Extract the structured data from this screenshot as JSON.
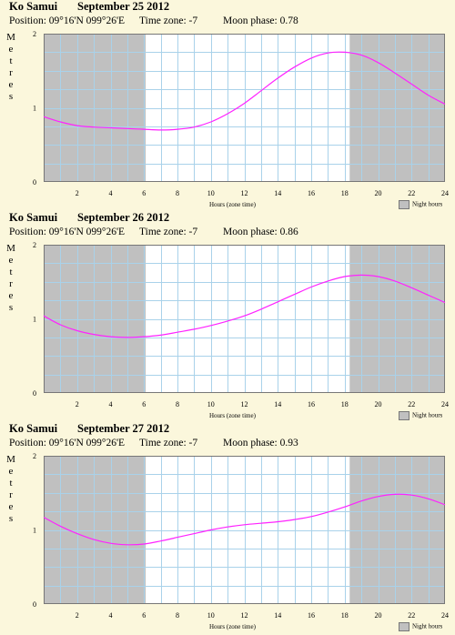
{
  "colors": {
    "background": "#fbf7dc",
    "night": "#c0c0c0",
    "day": "#ffffff",
    "grid": "#a9d2ea",
    "curve": "#ff22ff"
  },
  "ylabel_letters": [
    "M",
    "e",
    "t",
    "r",
    "e",
    "s"
  ],
  "xlabel": "Hours (zone time)",
  "legend_label": "Night hours",
  "chart_data": [
    {
      "type": "line",
      "place": "Ko Samui",
      "date": "September 25 2012",
      "position": "Position: 09°16'N 099°26'E",
      "timezone": "Time zone: -7",
      "moon": "Moon phase: 0.78",
      "xlim": [
        0,
        24
      ],
      "ylim": [
        0,
        2
      ],
      "xticks": [
        "2",
        "4",
        "6",
        "8",
        "10",
        "12",
        "14",
        "16",
        "18",
        "20",
        "22",
        "24"
      ],
      "yticks": [
        "0",
        "1",
        "2"
      ],
      "night": [
        [
          0,
          6.1
        ],
        [
          18.3,
          24
        ]
      ],
      "grid": true,
      "legend": "bottom-right",
      "x": [
        0,
        1,
        2,
        3,
        4,
        5,
        6,
        7,
        8,
        9,
        10,
        11,
        12,
        13,
        14,
        15,
        16,
        17,
        18,
        19,
        20,
        21,
        22,
        23,
        24
      ],
      "y": [
        0.88,
        0.81,
        0.76,
        0.74,
        0.73,
        0.72,
        0.71,
        0.7,
        0.71,
        0.74,
        0.81,
        0.92,
        1.06,
        1.23,
        1.4,
        1.55,
        1.67,
        1.74,
        1.75,
        1.71,
        1.61,
        1.47,
        1.32,
        1.17,
        1.05
      ]
    },
    {
      "type": "line",
      "place": "Ko Samui",
      "date": "September 26 2012",
      "position": "Position: 09°16'N 099°26'E",
      "timezone": "Time zone: -7",
      "moon": "Moon phase: 0.86",
      "xlim": [
        0,
        24
      ],
      "ylim": [
        0,
        2
      ],
      "xticks": [
        "2",
        "4",
        "6",
        "8",
        "10",
        "12",
        "14",
        "16",
        "18",
        "20",
        "22",
        "24"
      ],
      "yticks": [
        "0",
        "1",
        "2"
      ],
      "night": [
        [
          0,
          6.1
        ],
        [
          18.3,
          24
        ]
      ],
      "grid": true,
      "legend": "bottom-right",
      "x": [
        0,
        1,
        2,
        3,
        4,
        5,
        6,
        7,
        8,
        9,
        10,
        11,
        12,
        13,
        14,
        15,
        16,
        17,
        18,
        19,
        20,
        21,
        22,
        23,
        24
      ],
      "y": [
        1.04,
        0.92,
        0.84,
        0.79,
        0.76,
        0.75,
        0.76,
        0.78,
        0.82,
        0.86,
        0.91,
        0.97,
        1.04,
        1.13,
        1.23,
        1.33,
        1.43,
        1.51,
        1.57,
        1.59,
        1.57,
        1.51,
        1.42,
        1.32,
        1.22
      ]
    },
    {
      "type": "line",
      "place": "Ko Samui",
      "date": "September 27 2012",
      "position": "Position: 09°16'N 099°26'E",
      "timezone": "Time zone: -7",
      "moon": "Moon phase: 0.93",
      "xlim": [
        0,
        24
      ],
      "ylim": [
        0,
        2
      ],
      "xticks": [
        "2",
        "4",
        "6",
        "8",
        "10",
        "12",
        "14",
        "16",
        "18",
        "20",
        "22",
        "24"
      ],
      "yticks": [
        "0",
        "1",
        "2"
      ],
      "night": [
        [
          0,
          6.1
        ],
        [
          18.3,
          24
        ]
      ],
      "grid": true,
      "legend": "bottom-right",
      "x": [
        0,
        1,
        2,
        3,
        4,
        5,
        6,
        7,
        8,
        9,
        10,
        11,
        12,
        13,
        14,
        15,
        16,
        17,
        18,
        19,
        20,
        21,
        22,
        23,
        24
      ],
      "y": [
        1.17,
        1.05,
        0.95,
        0.87,
        0.82,
        0.8,
        0.81,
        0.85,
        0.9,
        0.95,
        1.0,
        1.04,
        1.07,
        1.09,
        1.11,
        1.14,
        1.18,
        1.24,
        1.31,
        1.39,
        1.45,
        1.48,
        1.47,
        1.42,
        1.34
      ]
    }
  ]
}
